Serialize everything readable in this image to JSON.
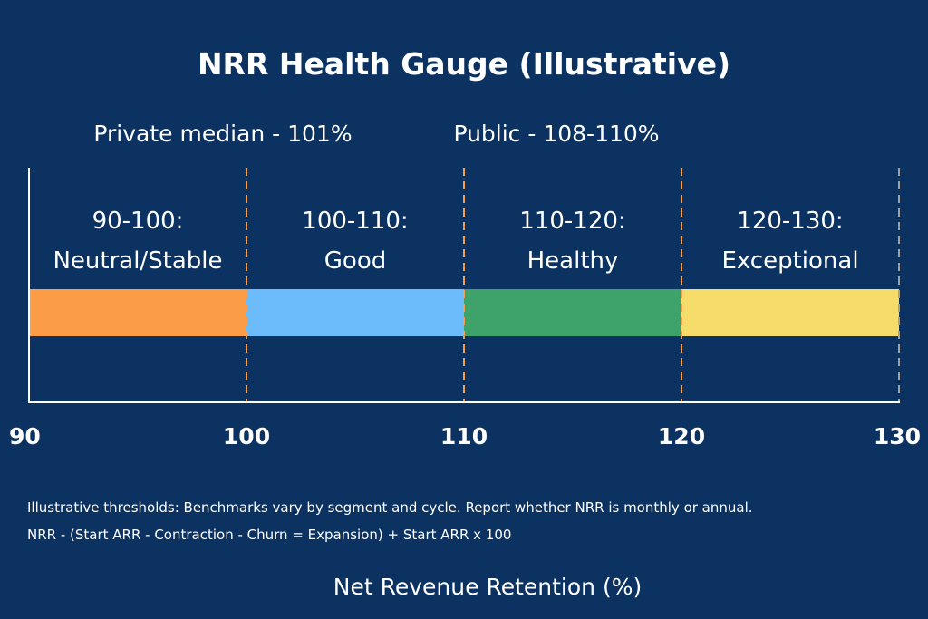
{
  "chart_data": {
    "type": "bar",
    "title": "NRR Health Gauge (Illustrative)",
    "xlabel": "Net Revenue Retention (%)",
    "xlim": [
      90,
      130
    ],
    "ticks": [
      90,
      100,
      110,
      120,
      130
    ],
    "segments": [
      {
        "from": 90,
        "to": 100,
        "range_label": "90-100:",
        "category": "Neutral/Stable",
        "color": "#fb9d47"
      },
      {
        "from": 100,
        "to": 110,
        "range_label": "100-110:",
        "category": "Good",
        "color": "#6cbcfb"
      },
      {
        "from": 110,
        "to": 120,
        "range_label": "110-120:",
        "category": "Healthy",
        "color": "#3da36b"
      },
      {
        "from": 120,
        "to": 130,
        "range_label": "120-130:",
        "category": "Exceptional",
        "color": "#f6dd6b"
      }
    ],
    "thresholds": [
      100,
      110,
      120
    ],
    "benchmarks": [
      {
        "label": "Private median - 101%",
        "value": 101
      },
      {
        "label": "Public - 108-110%",
        "value": 109
      }
    ],
    "notes": [
      "Illustrative thresholds: Benchmarks vary by segment and cycle. Report whether NRR is monthly or annual.",
      "NRR - (Start ARR - Contraction - Churn = Expansion) + Start ARR x 100"
    ]
  },
  "colors": {
    "background": "#0b3260",
    "threshold_line": "#f0a050",
    "end_line": "#a0a0a0",
    "axis": "#ffffff"
  }
}
